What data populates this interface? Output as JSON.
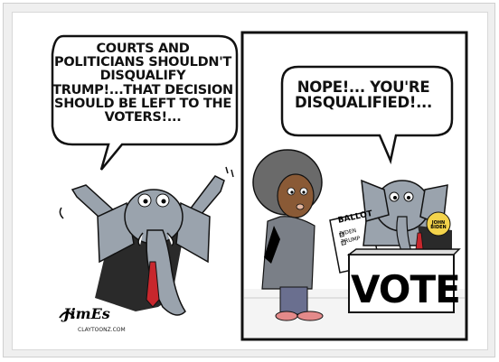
{
  "panel_left": {
    "speech": "COURTS AND POLITICIANS SHOULDN'T DISQUALIFY TRUMP!...THAT DECISION SHOULD BE LEFT TO THE VOTERS!..."
  },
  "panel_right": {
    "speech": "NOPE!... YOU'RE DISQUALIFIED!...",
    "ballot": {
      "title": "BALLOT",
      "options": [
        "BIDEN",
        "TRUMP"
      ]
    },
    "vote_box_label": "VOTE",
    "button_text": "JOHN BIDEN"
  },
  "credit": {
    "signature": "JimEs",
    "site": "CLAYTOONZ.COM"
  },
  "colors": {
    "tie_red": "#c8272d",
    "elephant_gray": "#9aa3ad",
    "hair": "#6a6a6a",
    "skin": "#8a5a36",
    "jacket": "#7a7f87",
    "floor_red": "#e48a8a",
    "box_yellow": "#f3d34b"
  }
}
